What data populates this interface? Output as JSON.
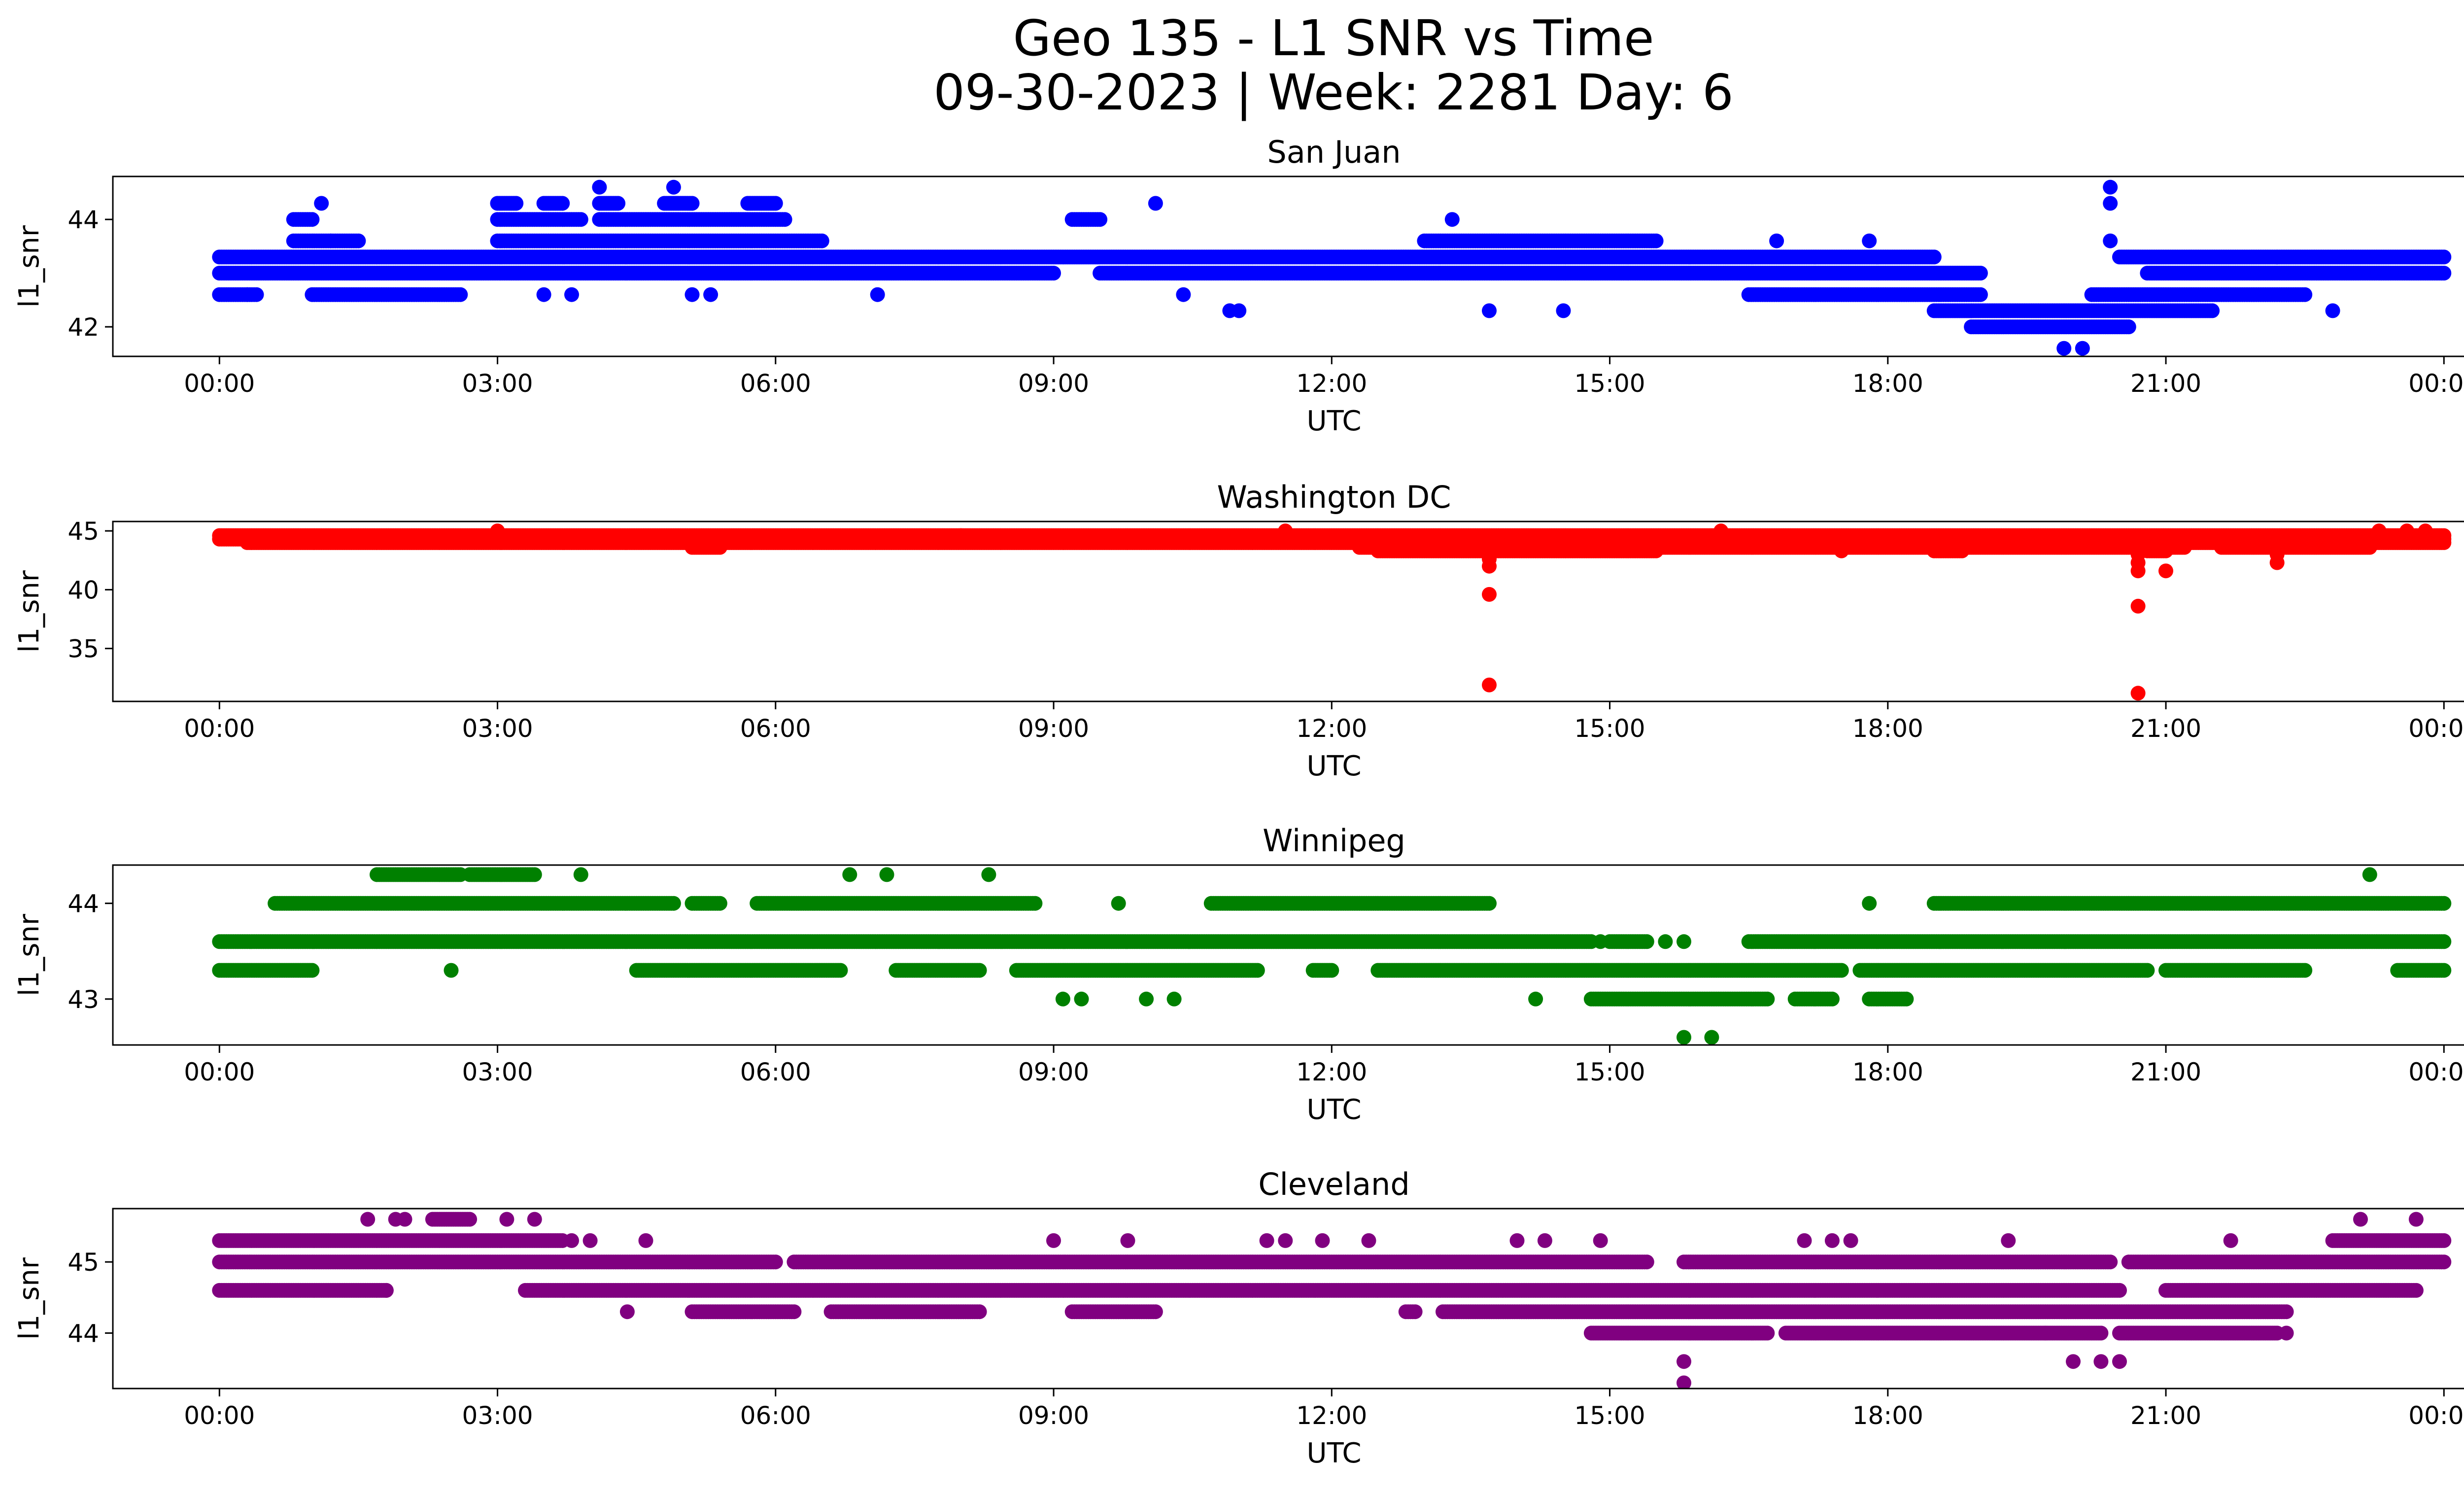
{
  "figure": {
    "title_line1": "Geo 135 - L1 SNR vs Time",
    "title_line2": "09-30-2023 | Week: 2281 Day: 6"
  },
  "chart_data": [
    {
      "type": "scatter",
      "title": "San Juan",
      "xlabel": "UTC",
      "ylabel": "l1_snr",
      "color": "#0000ff",
      "xlim": [
        -1.15,
        25.2
      ],
      "ylim": [
        41.45,
        44.8
      ],
      "xticks": [
        "00:00",
        "03:00",
        "06:00",
        "09:00",
        "12:00",
        "15:00",
        "18:00",
        "21:00",
        "00:00"
      ],
      "yticks": [
        42,
        44
      ],
      "bands": [
        {
          "y": 43.3,
          "segments": [
            [
              0,
              18.5
            ],
            [
              20.5,
              24
            ]
          ]
        },
        {
          "y": 43.0,
          "segments": [
            [
              0,
              9
            ],
            [
              9.5,
              19.0
            ],
            [
              20.8,
              24
            ]
          ]
        },
        {
          "y": 42.6,
          "segments": [
            [
              0,
              0.4
            ],
            [
              1.0,
              2.6
            ],
            [
              16.5,
              19.0
            ],
            [
              20.2,
              22.5
            ]
          ]
        },
        {
          "y": 43.6,
          "segments": [
            [
              0.8,
              1.5
            ],
            [
              3.0,
              6.5
            ],
            [
              13.0,
              15.5
            ]
          ]
        },
        {
          "y": 42.3,
          "segments": [
            [
              18.5,
              21.5
            ]
          ]
        },
        {
          "y": 42.0,
          "segments": [
            [
              18.9,
              20.6
            ]
          ]
        },
        {
          "y": 44.0,
          "segments": [
            [
              0.8,
              1.0
            ],
            [
              3.0,
              3.9
            ],
            [
              4.1,
              6.1
            ],
            [
              9.2,
              9.5
            ]
          ]
        },
        {
          "y": 44.3,
          "segments": [
            [
              3.0,
              3.2
            ],
            [
              3.5,
              3.7
            ],
            [
              4.1,
              4.3
            ],
            [
              4.8,
              5.1
            ],
            [
              5.7,
              6.0
            ]
          ]
        }
      ],
      "points": [
        [
          1.1,
          44.3
        ],
        [
          4.1,
          44.6
        ],
        [
          4.9,
          44.6
        ],
        [
          10.1,
          44.3
        ],
        [
          13.3,
          44.0
        ],
        [
          13.7,
          42.3
        ],
        [
          14.5,
          42.3
        ],
        [
          10.9,
          42.3
        ],
        [
          11.0,
          42.3
        ],
        [
          20.4,
          44.6
        ],
        [
          20.4,
          44.3
        ],
        [
          20.4,
          43.6
        ],
        [
          19.9,
          41.6
        ],
        [
          20.1,
          41.6
        ],
        [
          22.2,
          43.3
        ],
        [
          16.8,
          43.6
        ],
        [
          17.8,
          43.6
        ],
        [
          18.9,
          42.3
        ],
        [
          5.3,
          42.6
        ],
        [
          5.1,
          42.6
        ],
        [
          3.8,
          42.6
        ],
        [
          3.5,
          42.6
        ],
        [
          7.1,
          42.6
        ],
        [
          10.4,
          42.6
        ],
        [
          22.8,
          42.3
        ],
        [
          0.3,
          42.6
        ],
        [
          1.2,
          43.6
        ]
      ]
    },
    {
      "type": "scatter",
      "title": "Washington DC",
      "xlabel": "UTC",
      "ylabel": "l1_snr",
      "color": "#ff0000",
      "xlim": [
        -1.15,
        25.2
      ],
      "ylim": [
        30.5,
        45.8
      ],
      "xticks": [
        "00:00",
        "03:00",
        "06:00",
        "09:00",
        "12:00",
        "15:00",
        "18:00",
        "21:00",
        "00:00"
      ],
      "yticks": [
        35,
        40,
        45
      ],
      "bands": [
        {
          "y": 44.3,
          "segments": [
            [
              0,
              24
            ]
          ]
        },
        {
          "y": 44.6,
          "segments": [
            [
              0,
              24
            ]
          ]
        },
        {
          "y": 44.0,
          "segments": [
            [
              0.3,
              24
            ]
          ]
        },
        {
          "y": 43.6,
          "segments": [
            [
              5.1,
              5.4
            ],
            [
              12.3,
              21.2
            ],
            [
              21.6,
              23.2
            ]
          ]
        },
        {
          "y": 43.3,
          "segments": [
            [
              12.5,
              15.5
            ],
            [
              18.5,
              18.8
            ],
            [
              20.8,
              21.0
            ]
          ]
        }
      ],
      "points": [
        [
          13.7,
          42.6
        ],
        [
          13.7,
          42.0
        ],
        [
          13.7,
          39.6
        ],
        [
          13.7,
          31.9
        ],
        [
          20.7,
          43.0
        ],
        [
          20.7,
          42.3
        ],
        [
          20.7,
          41.6
        ],
        [
          20.7,
          38.6
        ],
        [
          20.7,
          31.2
        ],
        [
          21.0,
          41.6
        ],
        [
          22.2,
          42.3
        ],
        [
          22.2,
          43.0
        ],
        [
          23.3,
          45.0
        ],
        [
          23.6,
          45.0
        ],
        [
          23.8,
          45.0
        ],
        [
          3.0,
          45.0
        ],
        [
          16.2,
          45.0
        ],
        [
          17.5,
          43.3
        ],
        [
          8.0,
          44.6
        ],
        [
          11.5,
          45.0
        ]
      ]
    },
    {
      "type": "scatter",
      "title": "Winnipeg",
      "xlabel": "UTC",
      "ylabel": "l1_snr",
      "color": "#008000",
      "xlim": [
        -1.15,
        25.2
      ],
      "ylim": [
        42.52,
        44.4
      ],
      "xticks": [
        "00:00",
        "03:00",
        "06:00",
        "09:00",
        "12:00",
        "15:00",
        "18:00",
        "21:00",
        "00:00"
      ],
      "yticks": [
        43,
        44
      ],
      "bands": [
        {
          "y": 43.6,
          "segments": [
            [
              0,
              14.8
            ],
            [
              15.0,
              15.4
            ],
            [
              16.5,
              24
            ]
          ]
        },
        {
          "y": 44.0,
          "segments": [
            [
              0.6,
              4.9
            ],
            [
              5.1,
              5.4
            ],
            [
              5.8,
              8.8
            ],
            [
              10.7,
              13.7
            ],
            [
              18.5,
              24
            ]
          ]
        },
        {
          "y": 43.3,
          "segments": [
            [
              0,
              1.0
            ],
            [
              4.5,
              6.7
            ],
            [
              7.3,
              8.2
            ],
            [
              8.6,
              11.2
            ],
            [
              11.8,
              12.0
            ],
            [
              12.5,
              17.5
            ],
            [
              17.7,
              20.8
            ],
            [
              21.0,
              22.5
            ],
            [
              23.5,
              24
            ]
          ]
        },
        {
          "y": 43.0,
          "segments": [
            [
              14.8,
              16.7
            ],
            [
              17.0,
              17.4
            ],
            [
              17.8,
              18.2
            ]
          ]
        },
        {
          "y": 44.3,
          "segments": [
            [
              1.7,
              2.6
            ],
            [
              2.7,
              3.4
            ]
          ]
        }
      ],
      "points": [
        [
          3.9,
          44.3
        ],
        [
          6.8,
          44.3
        ],
        [
          7.2,
          44.3
        ],
        [
          8.3,
          44.3
        ],
        [
          23.2,
          44.3
        ],
        [
          2.5,
          43.3
        ],
        [
          9.1,
          43.0
        ],
        [
          9.3,
          43.0
        ],
        [
          10.0,
          43.0
        ],
        [
          10.3,
          43.0
        ],
        [
          14.2,
          43.0
        ],
        [
          15.8,
          42.6
        ],
        [
          16.1,
          42.6
        ],
        [
          9.7,
          44.0
        ],
        [
          17.8,
          44.0
        ],
        [
          15.6,
          43.6
        ],
        [
          15.8,
          43.6
        ],
        [
          14.9,
          43.6
        ]
      ]
    },
    {
      "type": "scatter",
      "title": "Cleveland",
      "xlabel": "UTC",
      "ylabel": "l1_snr",
      "color": "#800080",
      "xlim": [
        -1.15,
        25.2
      ],
      "ylim": [
        43.22,
        45.75
      ],
      "xticks": [
        "00:00",
        "03:00",
        "06:00",
        "09:00",
        "12:00",
        "15:00",
        "18:00",
        "21:00",
        "00:00"
      ],
      "yticks": [
        44,
        45
      ],
      "bands": [
        {
          "y": 45.3,
          "segments": [
            [
              0,
              3.7
            ],
            [
              22.8,
              24
            ]
          ]
        },
        {
          "y": 45.0,
          "segments": [
            [
              0,
              6.0
            ],
            [
              6.2,
              15.4
            ],
            [
              15.8,
              20.4
            ],
            [
              20.6,
              24
            ]
          ]
        },
        {
          "y": 44.6,
          "segments": [
            [
              0,
              1.8
            ],
            [
              3.3,
              20.5
            ],
            [
              21.0,
              23.7
            ]
          ]
        },
        {
          "y": 44.3,
          "segments": [
            [
              5.1,
              6.2
            ],
            [
              6.6,
              8.2
            ],
            [
              9.2,
              10.1
            ],
            [
              12.8,
              12.9
            ],
            [
              13.2,
              22.3
            ]
          ]
        },
        {
          "y": 44.0,
          "segments": [
            [
              14.8,
              16.7
            ],
            [
              16.9,
              20.3
            ],
            [
              20.5,
              22.2
            ]
          ]
        },
        {
          "y": 45.6,
          "segments": [
            [
              2.3,
              2.7
            ]
          ]
        }
      ],
      "points": [
        [
          1.6,
          45.6
        ],
        [
          1.9,
          45.6
        ],
        [
          2.0,
          45.6
        ],
        [
          3.1,
          45.6
        ],
        [
          3.4,
          45.6
        ],
        [
          23.1,
          45.6
        ],
        [
          23.7,
          45.6
        ],
        [
          3.8,
          45.3
        ],
        [
          4.0,
          45.3
        ],
        [
          4.6,
          45.3
        ],
        [
          9.0,
          45.3
        ],
        [
          9.8,
          45.3
        ],
        [
          11.3,
          45.3
        ],
        [
          11.5,
          45.3
        ],
        [
          11.9,
          45.3
        ],
        [
          12.4,
          45.3
        ],
        [
          14.0,
          45.3
        ],
        [
          14.3,
          45.3
        ],
        [
          14.9,
          45.3
        ],
        [
          17.1,
          45.3
        ],
        [
          17.4,
          45.3
        ],
        [
          17.6,
          45.3
        ],
        [
          19.3,
          45.3
        ],
        [
          21.7,
          45.3
        ],
        [
          4.4,
          44.3
        ],
        [
          15.8,
          43.6
        ],
        [
          15.8,
          43.3
        ],
        [
          20.0,
          43.6
        ],
        [
          20.3,
          43.6
        ],
        [
          20.5,
          43.6
        ],
        [
          19.7,
          44.0
        ],
        [
          22.3,
          44.0
        ],
        [
          1.8,
          44.6
        ]
      ]
    }
  ]
}
